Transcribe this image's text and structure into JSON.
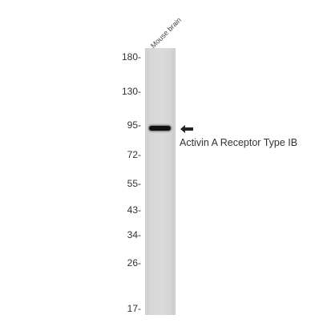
{
  "sample": {
    "lane_label": "Mouse brain"
  },
  "markers": [
    {
      "label": "180-",
      "kda": 180
    },
    {
      "label": "130-",
      "kda": 130
    },
    {
      "label": "95-",
      "kda": 95
    },
    {
      "label": "72-",
      "kda": 72
    },
    {
      "label": "55-",
      "kda": 55
    },
    {
      "label": "43-",
      "kda": 43
    },
    {
      "label": "34-",
      "kda": 34
    },
    {
      "label": "26-",
      "kda": 26
    },
    {
      "label": "17-",
      "kda": 17
    }
  ],
  "target": {
    "label": "Activin A Receptor Type IB",
    "arrow_icon": "left-arrow-icon"
  },
  "colors": {
    "lane": "#d8d8d8",
    "band": "#111111"
  }
}
